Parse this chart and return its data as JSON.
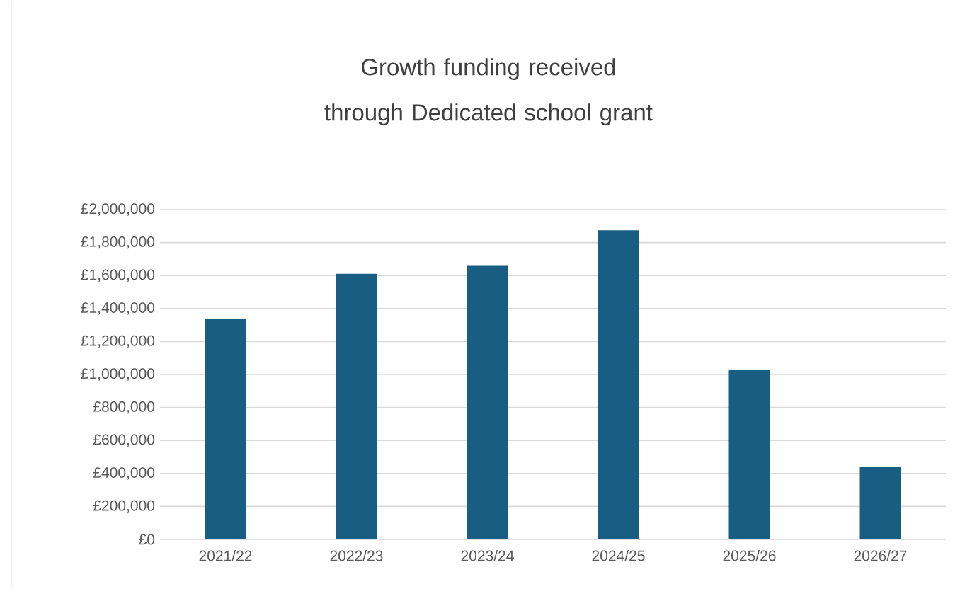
{
  "chart_data": {
    "type": "bar",
    "title": "Growth funding  received through Dedicated school grant",
    "categories": [
      "2021/22",
      "2022/23",
      "2023/24",
      "2024/25",
      "2025/26",
      "2026/27"
    ],
    "values": [
      1337000,
      1611000,
      1659000,
      1874000,
      1030000,
      441000
    ],
    "color": "#175e82",
    "ylim": [
      0,
      2000000
    ],
    "yticks": [
      {
        "value": 0,
        "label": "£0"
      },
      {
        "value": 200000,
        "label": "£200,000"
      },
      {
        "value": 400000,
        "label": "£400,000"
      },
      {
        "value": 600000,
        "label": "£600,000"
      },
      {
        "value": 800000,
        "label": "£800,000"
      },
      {
        "value": 1000000,
        "label": "£1,000,000"
      },
      {
        "value": 1200000,
        "label": "£1,200,000"
      },
      {
        "value": 1400000,
        "label": "£1,400,000"
      },
      {
        "value": 1600000,
        "label": "£1,600,000"
      },
      {
        "value": 1800000,
        "label": "£1,800,000"
      },
      {
        "value": 2000000,
        "label": "£2,000,000"
      }
    ],
    "grid": "y"
  }
}
